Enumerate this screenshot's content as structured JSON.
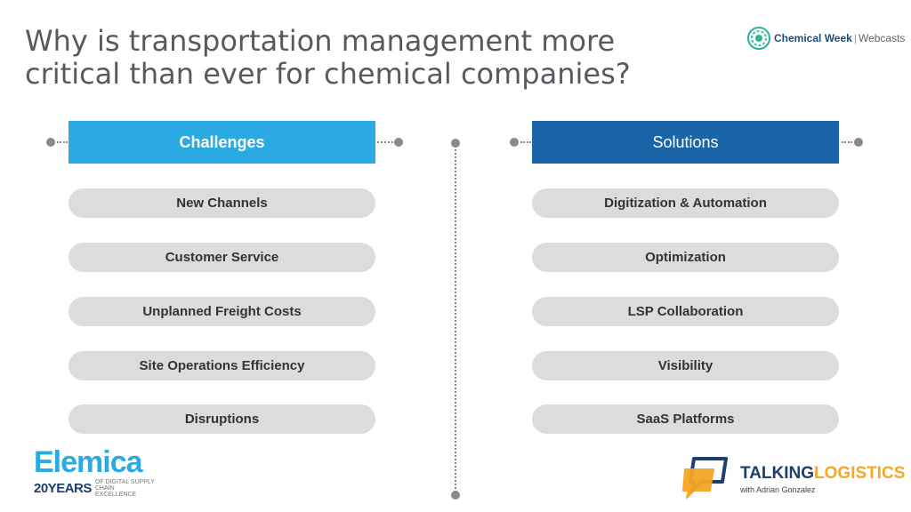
{
  "title": {
    "line1": "Why is transportation management more",
    "line2": "critical than ever for chemical companies?"
  },
  "chemical_week_logo": {
    "brand": "Chemical Week",
    "separator": "|",
    "sub": "Webcasts"
  },
  "challenges": {
    "header": "Challenges",
    "items": [
      "New Channels",
      "Customer Service",
      "Unplanned Freight Costs",
      "Site Operations Efficiency",
      "Disruptions"
    ]
  },
  "solutions": {
    "header": "Solutions",
    "items": [
      "Digitization & Automation",
      "Optimization",
      "LSP Collaboration",
      "Visibility",
      "SaaS Platforms"
    ]
  },
  "elemica_logo": {
    "name": "Elemica",
    "years": "20YEARS",
    "tagline": "OF DIGITAL SUPPLY CHAIN EXCELLENCE"
  },
  "talking_logistics_logo": {
    "talking": "TALKING",
    "logistics": "LOGISTICS",
    "sub": "with Adrian Gonzalez"
  },
  "colors": {
    "challenges_header": "#29aae2",
    "solutions_header": "#1a64a8",
    "pill": "#dcdcdc",
    "title": "#555a5f"
  }
}
